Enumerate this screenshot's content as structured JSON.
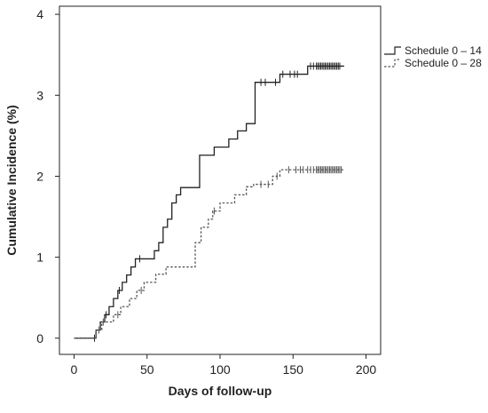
{
  "chart_data": {
    "type": "line",
    "title": "",
    "xlabel": "Days of follow-up",
    "ylabel": "Cumulative Incidence (%)",
    "xlim": [
      -10,
      210
    ],
    "ylim": [
      -0.2,
      4.1
    ],
    "xticks": [
      0,
      50,
      100,
      150,
      200
    ],
    "yticks": [
      0,
      1,
      2,
      3,
      4
    ],
    "x_tick_labels": [
      "0",
      "50",
      "100",
      "150",
      "200"
    ],
    "y_tick_labels": [
      "0",
      "1",
      "2",
      "3",
      "4"
    ],
    "grid": false,
    "legend_position": "top-right, outside plot",
    "step": true,
    "series": [
      {
        "name": "Schedule 0 – 14",
        "line_style": "solid",
        "color": "#222222",
        "x": [
          0,
          15,
          18,
          21,
          24,
          27,
          30,
          33,
          36,
          39,
          42,
          45,
          55,
          58,
          61,
          64,
          67,
          70,
          73,
          76,
          86,
          96,
          106,
          112,
          118,
          124,
          141,
          155,
          160,
          185
        ],
        "y": [
          0,
          0.1,
          0.2,
          0.29,
          0.39,
          0.49,
          0.59,
          0.69,
          0.78,
          0.88,
          0.98,
          0.98,
          1.08,
          1.18,
          1.37,
          1.47,
          1.67,
          1.77,
          1.86,
          1.86,
          2.26,
          2.36,
          2.46,
          2.56,
          2.65,
          3.16,
          3.26,
          3.26,
          3.36,
          3.36
        ],
        "censor_x": [
          14,
          22,
          31,
          45,
          128,
          131,
          138,
          143,
          148,
          151,
          153,
          162,
          164,
          166,
          167,
          168,
          169,
          170,
          171,
          172,
          173,
          174,
          175,
          176,
          177,
          178,
          179,
          180,
          181,
          182
        ]
      },
      {
        "name": "Schedule 0 – 28",
        "line_style": "dashed",
        "color": "#555555",
        "x": [
          0,
          15,
          19,
          23,
          27,
          32,
          38,
          43,
          48,
          56,
          63,
          70,
          83,
          87,
          92,
          95,
          100,
          110,
          118,
          123,
          136,
          141,
          148,
          185
        ],
        "y": [
          0,
          0.1,
          0.2,
          0.2,
          0.29,
          0.39,
          0.49,
          0.59,
          0.69,
          0.79,
          0.88,
          0.88,
          1.18,
          1.37,
          1.47,
          1.57,
          1.67,
          1.77,
          1.87,
          1.9,
          2.0,
          2.08,
          2.08,
          2.08
        ],
        "censor_x": [
          17,
          20,
          30,
          46,
          96,
          128,
          133,
          139,
          147,
          152,
          155,
          157,
          160,
          162,
          164,
          166,
          167,
          168,
          169,
          170,
          171,
          172,
          173,
          174,
          175,
          176,
          177,
          178,
          179,
          180,
          181,
          182,
          183
        ]
      }
    ]
  }
}
